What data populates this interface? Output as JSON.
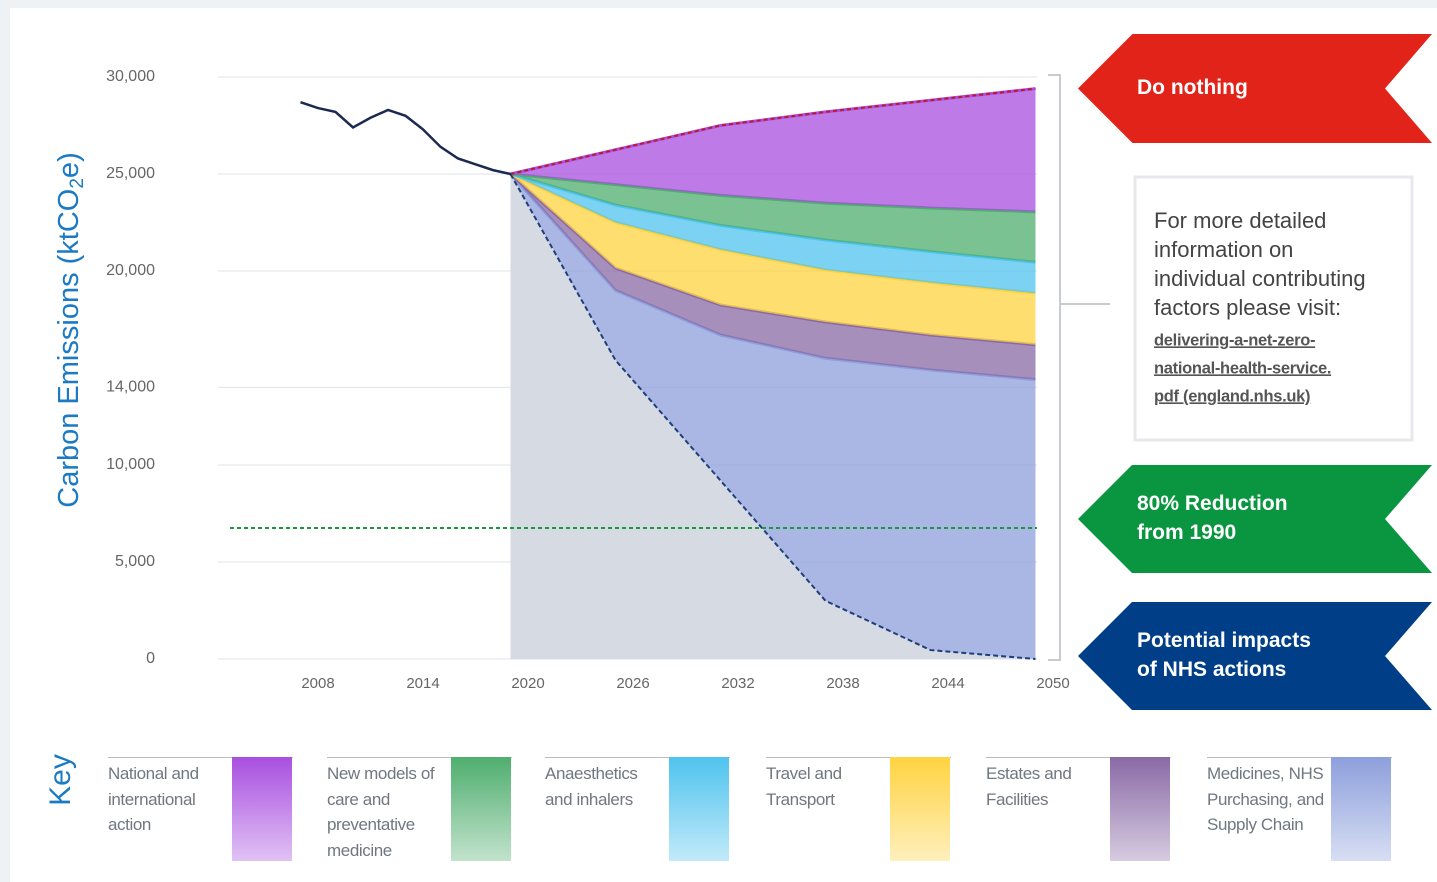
{
  "chart_data": {
    "type": "stacked_area",
    "y_label": [
      "Carbon Emissions (ktCO",
      "2",
      "e)"
    ],
    "xlim": [
      2002,
      2050
    ],
    "xticks": [
      2008,
      2014,
      2020,
      2026,
      2032,
      2038,
      2044,
      2050
    ],
    "ylim": [
      0,
      30000
    ],
    "yticks": [
      0,
      {
        "value": 5000,
        "label": "5,000"
      },
      {
        "value": 10000,
        "label": "10,000"
      },
      {
        "value": 14000,
        "label": "14,000"
      },
      {
        "value": 20000,
        "label": "20,000"
      },
      {
        "value": 25000,
        "label": "25,000"
      },
      {
        "value": 30000,
        "label": "30,000"
      }
    ],
    "grid": true,
    "history": {
      "color": "#1b2a4e",
      "x": [
        2007,
        2008,
        2009,
        2010,
        2011,
        2012,
        2013,
        2014,
        2015,
        2016,
        2017,
        2018,
        2019
      ],
      "values": [
        28700,
        28400,
        28200,
        27400,
        27900,
        28300,
        28000,
        27300,
        26400,
        25800,
        25500,
        25200,
        25000
      ]
    },
    "x": [
      2019,
      2025,
      2031,
      2037,
      2043,
      2049
    ],
    "baseline": {
      "color": "#d6dae3",
      "line_color": "#1f3f7a",
      "values": [
        25000,
        15400,
        9200,
        3000,
        460,
        0
      ]
    },
    "series": [
      {
        "name": "Medicines, NHS Purchasing, and Supply Chain",
        "color": "#8d9fdc",
        "values": [
          0,
          3600,
          7500,
          12500,
          14440,
          14400
        ]
      },
      {
        "name": "Estates and Facilities",
        "color": "#8a6aa6",
        "values": [
          0,
          1150,
          1550,
          1870,
          1800,
          1800
        ]
      },
      {
        "name": "Travel and Transport",
        "color": "#ffd340",
        "values": [
          0,
          2350,
          2850,
          2680,
          2700,
          2650
        ]
      },
      {
        "name": "Anaesthetics and inhalers",
        "color": "#4fc3ee",
        "values": [
          0,
          900,
          1250,
          1550,
          1600,
          1600
        ]
      },
      {
        "name": "New models of care and preventative medicine",
        "color": "#4fae6e",
        "values": [
          0,
          1050,
          1550,
          1900,
          2250,
          2600
        ]
      },
      {
        "name": "National and international action",
        "color": "#a84fe0",
        "values": [
          0,
          1800,
          3600,
          4700,
          5550,
          6350
        ]
      }
    ],
    "reduction_line": {
      "value": 6750,
      "color": "#1a9a3e"
    },
    "total_line_color": "#c0182a",
    "key_title": "Key",
    "annotations": [
      {
        "lines": [
          "Do nothing"
        ],
        "color": "#e2231a"
      },
      {
        "lines": [
          "80% Reduction",
          "from 1990"
        ],
        "color": "#0a9640"
      },
      {
        "lines": [
          "Potential impacts",
          "of NHS actions"
        ],
        "color": "#003f87"
      }
    ],
    "info": {
      "lines": [
        "For more detailed",
        "information on",
        "individual contributing",
        "factors please visit:"
      ],
      "link": [
        "delivering-a-net-zero-",
        "national-health-service.",
        "pdf (england.nhs.uk)"
      ]
    }
  }
}
